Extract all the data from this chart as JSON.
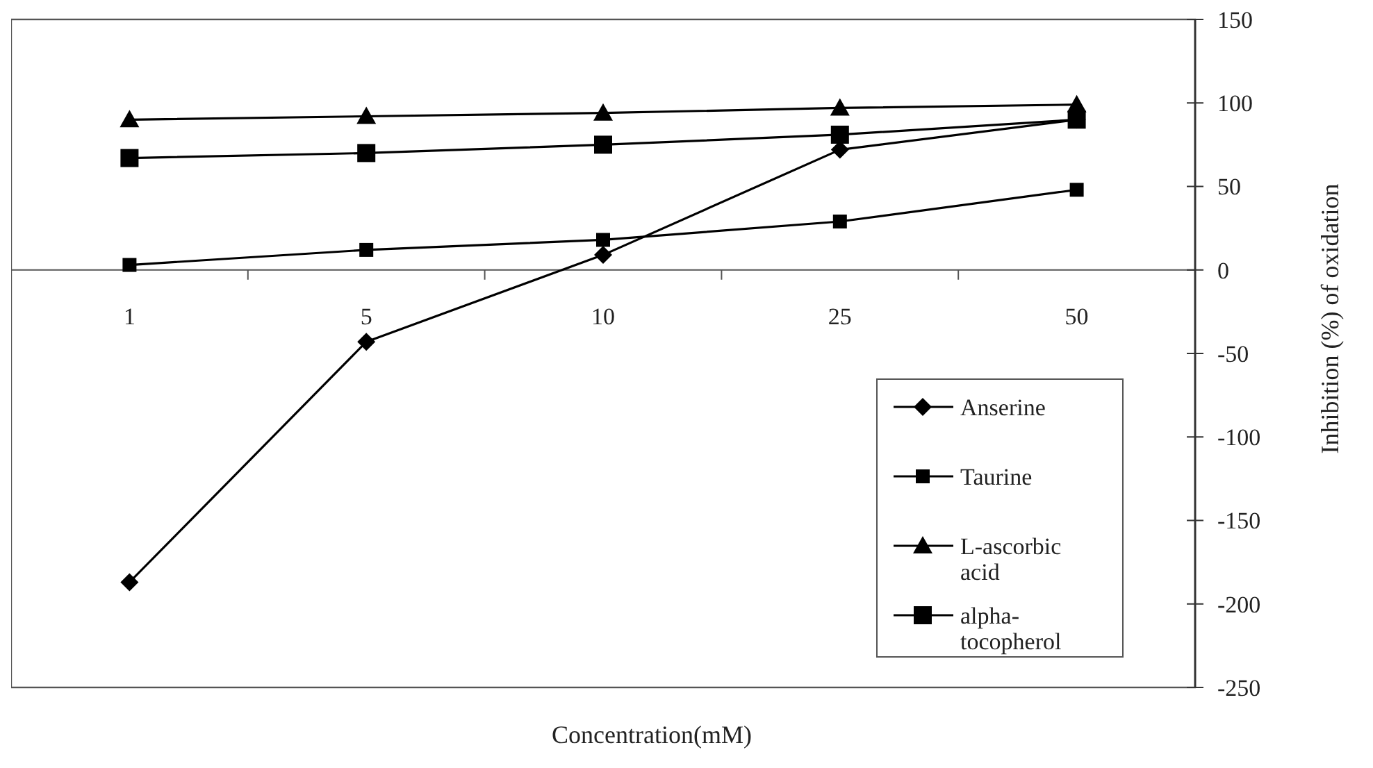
{
  "chart_data": {
    "type": "line",
    "xlabel": "Concentration(mM)",
    "ylabel": "Inhibition (%) of oxidation",
    "categories": [
      "1",
      "5",
      "10",
      "25",
      "50"
    ],
    "ylim": [
      -250,
      150
    ],
    "yticks": [
      -250,
      -200,
      -150,
      -100,
      -50,
      0,
      50,
      100,
      150
    ],
    "grid": false,
    "legend": "bottom right",
    "line_style": "solid",
    "series": [
      {
        "name": "Anserine",
        "color": "#000000",
        "marker": "diamond",
        "values": [
          -187,
          -43,
          9,
          72,
          90
        ]
      },
      {
        "name": "Taurine",
        "color": "#000000",
        "marker": "square",
        "values": [
          3,
          12,
          18,
          29,
          48
        ]
      },
      {
        "name": "L-ascorbic acid",
        "color": "#000000",
        "marker": "triangle",
        "values": [
          90,
          92,
          94,
          97,
          99
        ]
      },
      {
        "name": "alpha-tocopherol",
        "color": "#000000",
        "marker": "square",
        "values": [
          67,
          70,
          75,
          81,
          90
        ]
      }
    ]
  }
}
